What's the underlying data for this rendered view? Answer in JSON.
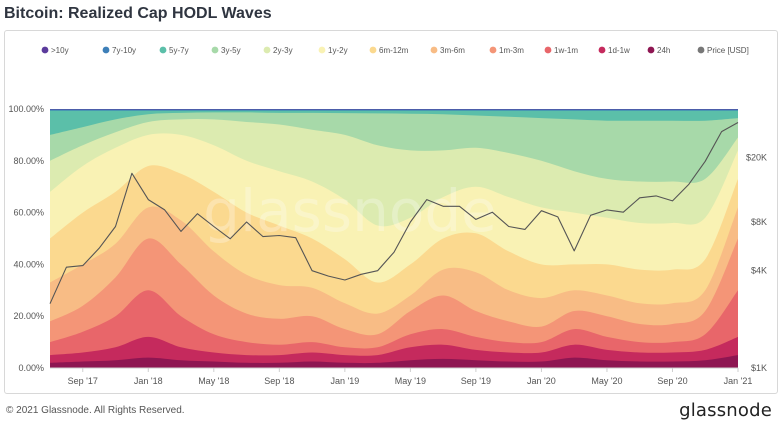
{
  "title": "Bitcoin: Realized Cap HODL Waves",
  "footer": {
    "copyright": "© 2021 Glassnode. All Rights Reserved.",
    "logo": "glassnode"
  },
  "watermark": "glassnode",
  "chart_data": {
    "type": "area",
    "title": "Bitcoin: Realized Cap HODL Waves",
    "stacked": true,
    "x_tick_labels": [
      "Sep '17",
      "Jan '18",
      "May '18",
      "Sep '18",
      "Jan '19",
      "May '19",
      "Sep '19",
      "Jan '20",
      "May '20",
      "Sep '20",
      "Jan '21"
    ],
    "y_left_ticks": [
      "0.00%",
      "20.00%",
      "40.00%",
      "60.00%",
      "80.00%",
      "100.00%"
    ],
    "y_left_range": [
      0,
      100
    ],
    "y_right_ticks": [
      "$1K",
      "$4K",
      "$8K",
      "$20K"
    ],
    "y_right_scale": "log",
    "legend_position": "top",
    "grid": false,
    "x": [
      "2017-07",
      "2017-09",
      "2017-11",
      "2018-01",
      "2018-03",
      "2018-05",
      "2018-07",
      "2018-09",
      "2018-11",
      "2019-01",
      "2019-03",
      "2019-05",
      "2019-07",
      "2019-09",
      "2019-11",
      "2020-01",
      "2020-03",
      "2020-05",
      "2020-07",
      "2020-09",
      "2020-11",
      "2021-01"
    ],
    "series": [
      {
        "name": "24h",
        "color": "#8e1652",
        "values": [
          2,
          2.5,
          3,
          4,
          3,
          2.5,
          2,
          2,
          2.5,
          2,
          2,
          3,
          3.5,
          3,
          2.5,
          2.5,
          4,
          3,
          2.5,
          2.5,
          3,
          5
        ]
      },
      {
        "name": "1d-1w",
        "color": "#c52a5d",
        "values": [
          5,
          6,
          8,
          12,
          8,
          6,
          5,
          5,
          6,
          5,
          5,
          8,
          9,
          7,
          6,
          6,
          9,
          7,
          6,
          6,
          7,
          12
        ]
      },
      {
        "name": "1w-1m",
        "color": "#e8666a",
        "values": [
          10,
          14,
          20,
          30,
          20,
          13,
          10,
          9,
          10,
          8,
          8,
          13,
          15,
          12,
          10,
          10,
          15,
          12,
          10,
          10,
          13,
          30
        ]
      },
      {
        "name": "1m-3m",
        "color": "#f49577",
        "values": [
          18,
          24,
          35,
          50,
          40,
          28,
          21,
          19,
          20,
          15,
          13,
          22,
          28,
          22,
          18,
          16,
          22,
          20,
          17,
          17,
          22,
          50
        ]
      },
      {
        "name": "3m-6m",
        "color": "#f8bc85",
        "values": [
          33,
          40,
          48,
          62,
          57,
          45,
          36,
          32,
          31,
          25,
          21,
          28,
          38,
          37,
          30,
          27,
          30,
          28,
          25,
          25,
          30,
          62
        ]
      },
      {
        "name": "6m-12m",
        "color": "#fbd98f",
        "values": [
          50,
          60,
          68,
          78,
          75,
          68,
          60,
          55,
          50,
          42,
          33,
          40,
          50,
          52,
          45,
          40,
          40,
          40,
          38,
          38,
          42,
          73
        ]
      },
      {
        "name": "1y-2y",
        "color": "#f9f2b4",
        "values": [
          68,
          78,
          85,
          90,
          90,
          86,
          80,
          76,
          72,
          65,
          55,
          58,
          66,
          70,
          66,
          62,
          60,
          58,
          56,
          56,
          58,
          84
        ]
      },
      {
        "name": "2y-3y",
        "color": "#dcebb0",
        "values": [
          80,
          86,
          91,
          95,
          96,
          96,
          95,
          94,
          92,
          90,
          86,
          84,
          84,
          85,
          83,
          80,
          76,
          73,
          72,
          72,
          73,
          89
        ]
      },
      {
        "name": "3y-5y",
        "color": "#a7d9a9",
        "values": [
          90,
          93,
          96,
          98,
          98.5,
          98.7,
          98.7,
          98.5,
          98.5,
          98.4,
          98.3,
          98.2,
          98,
          97.5,
          97,
          96.5,
          96,
          95.5,
          95.5,
          95.5,
          95.5,
          96.5
        ]
      },
      {
        "name": "5y-7y",
        "color": "#5bbfa9",
        "values": [
          99.4,
          99.4,
          99.4,
          99.4,
          99.4,
          99.4,
          99.4,
          99.4,
          99.4,
          99.4,
          99.4,
          99.4,
          99.4,
          99.4,
          99.4,
          99.4,
          99.4,
          99.4,
          99.4,
          99.4,
          99.4,
          99.4
        ]
      },
      {
        "name": "7y-10y",
        "color": "#3d7fb8",
        "values": [
          99.8,
          99.8,
          99.8,
          99.8,
          99.8,
          99.8,
          99.8,
          99.8,
          99.8,
          99.8,
          99.8,
          99.8,
          99.8,
          99.8,
          99.8,
          99.8,
          99.8,
          99.8,
          99.8,
          99.8,
          99.8,
          99.8
        ]
      },
      {
        "name": ">10y",
        "color": "#5b3b9c",
        "values": [
          100,
          100,
          100,
          100,
          100,
          100,
          100,
          100,
          100,
          100,
          100,
          100,
          100,
          100,
          100,
          100,
          100,
          100,
          100,
          100,
          100,
          100
        ]
      }
    ],
    "price_series": {
      "name": "Price [USD]",
      "color": "#555555",
      "x": [
        "2017-07",
        "2017-08",
        "2017-09",
        "2017-10",
        "2017-11",
        "2017-12",
        "2018-01",
        "2018-02",
        "2018-03",
        "2018-04",
        "2018-05",
        "2018-06",
        "2018-07",
        "2018-08",
        "2018-09",
        "2018-10",
        "2018-11",
        "2018-12",
        "2019-01",
        "2019-02",
        "2019-03",
        "2019-04",
        "2019-05",
        "2019-06",
        "2019-07",
        "2019-08",
        "2019-09",
        "2019-10",
        "2019-11",
        "2019-12",
        "2020-01",
        "2020-02",
        "2020-03",
        "2020-04",
        "2020-05",
        "2020-06",
        "2020-07",
        "2020-08",
        "2020-09",
        "2020-10",
        "2020-11",
        "2020-12",
        "2021-01"
      ],
      "values": [
        2500,
        4200,
        4300,
        5500,
        7500,
        16000,
        11000,
        9500,
        7000,
        9000,
        7500,
        6300,
        8000,
        6500,
        6600,
        6400,
        4000,
        3700,
        3500,
        3800,
        4000,
        5200,
        8000,
        11000,
        10000,
        10000,
        8300,
        9200,
        7500,
        7200,
        9400,
        8600,
        5300,
        8800,
        9500,
        9200,
        11300,
        11600,
        10800,
        13700,
        19000,
        29000,
        33000
      ]
    },
    "legend": [
      {
        "label": ">10y",
        "color": "#5b3b9c"
      },
      {
        "label": "7y-10y",
        "color": "#3d7fb8"
      },
      {
        "label": "5y-7y",
        "color": "#5bbfa9"
      },
      {
        "label": "3y-5y",
        "color": "#a7d9a9"
      },
      {
        "label": "2y-3y",
        "color": "#dcebb0"
      },
      {
        "label": "1y-2y",
        "color": "#f9f2b4"
      },
      {
        "label": "6m-12m",
        "color": "#fbd98f"
      },
      {
        "label": "3m-6m",
        "color": "#f8bc85"
      },
      {
        "label": "1m-3m",
        "color": "#f49577"
      },
      {
        "label": "1w-1m",
        "color": "#e8666a"
      },
      {
        "label": "1d-1w",
        "color": "#c52a5d"
      },
      {
        "label": "24h",
        "color": "#8e1652"
      },
      {
        "label": "Price [USD]",
        "color": "#777777"
      }
    ]
  }
}
